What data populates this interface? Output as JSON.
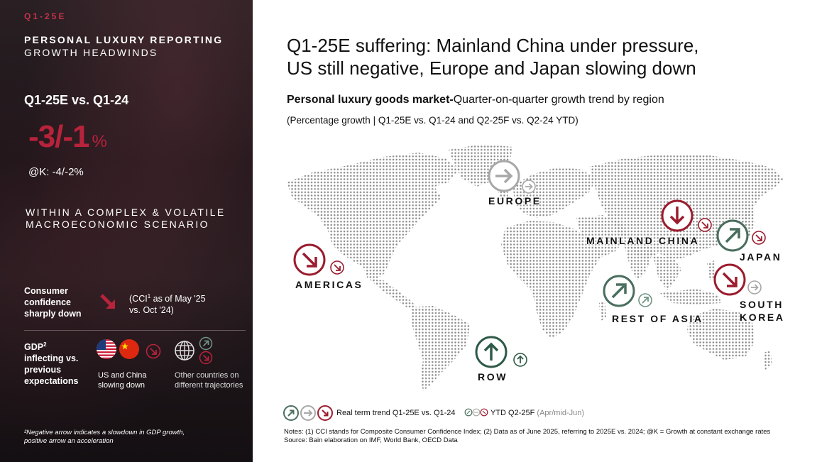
{
  "left": {
    "tag": "Q1-25E",
    "heading_line1": "PERSONAL LUXURY REPORTING",
    "heading_line2": "GROWTH HEADWINDS",
    "comparison": "Q1-25E vs. Q1-24",
    "growth_value": "-3/-1",
    "growth_unit": "%",
    "constant_fx": "@K: -4/-2%",
    "scenario_line1": "WITHIN A COMPLEX & VOLATILE",
    "scenario_line2": "MACROECONOMIC SCENARIO",
    "consumer_confidence": {
      "label_line1": "Consumer",
      "label_line2": "confidence",
      "label_line3": "sharply down",
      "note_prefix": "(CCI",
      "note_sup": "1",
      "note_line1_rest": " as of May '25",
      "note_line2": "vs. Oct '24)"
    },
    "gdp": {
      "label_prefix": "GDP",
      "label_sup": "2",
      "label_line2": "inflecting vs.",
      "label_line3": "previous",
      "label_line4": "expectations",
      "us_china_line1": "US and China",
      "us_china_line2": "slowing down",
      "others_line1": "Other countries on",
      "others_line2": "different trajectories"
    },
    "footnote_line1": "²Negative arrow indicates a slowdown in GDP growth,",
    "footnote_line2": "positive arrow an acceleration"
  },
  "right": {
    "title_line1": "Q1-25E suffering: Mainland China under pressure,",
    "title_line2": "US still negative, Europe and Japan slowing down",
    "subtitle_bold": "Personal luxury goods market-",
    "subtitle_rest": "Quarter-on-quarter growth trend by region",
    "subtitle2": "(Percentage growth | Q1-25E vs. Q1-24 and Q2-25F vs. Q2-24 YTD)",
    "regions": {
      "europe": "EUROPE",
      "mainland_china": "MAINLAND CHINA",
      "japan": "JAPAN",
      "americas": "AMERICAS",
      "rest_of_asia": "REST OF ASIA",
      "south_korea_1": "SOUTH",
      "south_korea_2": "KOREA",
      "row": "ROW"
    },
    "legend": {
      "q1_label": "Real term trend Q1-25E vs. Q1-24",
      "ytd_label": "YTD Q2-25F",
      "ytd_period": "(Apr/mid-Jun)"
    },
    "notes_line1": "Notes: (1) CCI stands for Composite Consumer Confidence Index; (2) Data as of June 2025, referring to 2025E vs. 2024; @K = Growth at constant exchange rates",
    "notes_line2": "Source: Bain elaboration on IMF, World Bank, OECD Data"
  },
  "colors": {
    "negative": "#9b1c2e",
    "neutral": "#a8a8a8",
    "positive": "#4a6e5e",
    "accent": "#b8233c"
  }
}
